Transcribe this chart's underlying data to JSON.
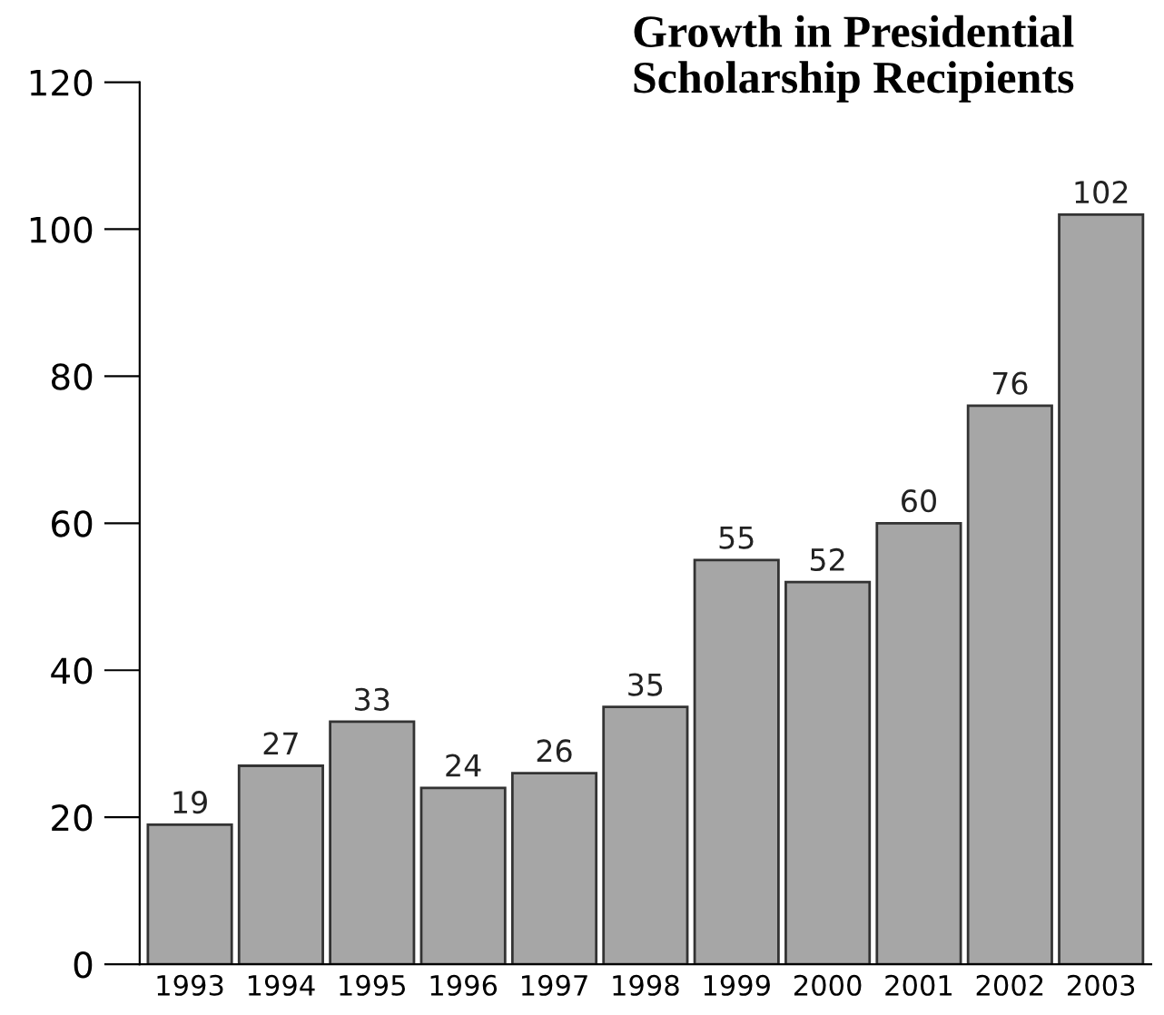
{
  "chart_data": {
    "type": "bar",
    "title": "Growth in Presidential Scholarship Recipients",
    "categories": [
      "1993",
      "1994",
      "1995",
      "1996",
      "1997",
      "1998",
      "1999",
      "2000",
      "2001",
      "2002",
      "2003"
    ],
    "values": [
      19,
      27,
      33,
      24,
      26,
      35,
      55,
      52,
      60,
      76,
      102
    ],
    "color": "#a6a6a6",
    "ylim": [
      0,
      120
    ],
    "yticks": [
      0,
      20,
      40,
      60,
      80,
      100,
      120
    ],
    "grid": false,
    "data_labels": true
  }
}
